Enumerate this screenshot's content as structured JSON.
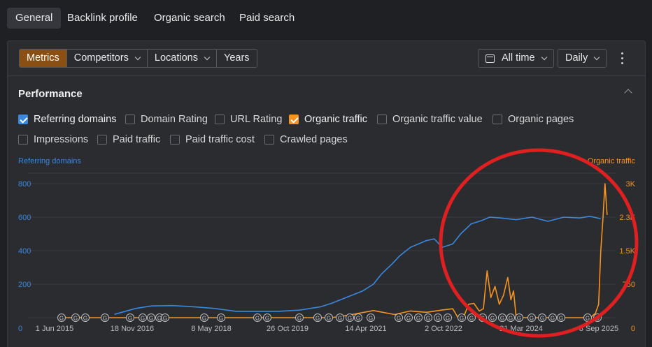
{
  "tabs": [
    {
      "label": "General",
      "active": true
    },
    {
      "label": "Backlink profile"
    },
    {
      "label": "Organic search"
    },
    {
      "label": "Paid search"
    }
  ],
  "toolbar": {
    "segments": [
      {
        "label": "Metrics",
        "active": true
      },
      {
        "label": "Competitors",
        "dropdown": true
      },
      {
        "label": "Locations",
        "dropdown": true
      },
      {
        "label": "Years"
      }
    ],
    "range_label": "All time",
    "interval_label": "Daily",
    "more_icon": "kebab-icon"
  },
  "performance": {
    "title": "Performance",
    "metrics": [
      {
        "label": "Referring domains",
        "checked": true,
        "color": "#3a87e0"
      },
      {
        "label": "Domain Rating",
        "checked": false
      },
      {
        "label": "URL Rating",
        "checked": false
      },
      {
        "label": "Organic traffic",
        "checked": true,
        "color": "#f7931e"
      },
      {
        "label": "Organic traffic value",
        "checked": false
      },
      {
        "label": "Organic pages",
        "checked": false
      },
      {
        "label": "Impressions",
        "checked": false
      },
      {
        "label": "Paid traffic",
        "checked": false
      },
      {
        "label": "Paid traffic cost",
        "checked": false
      },
      {
        "label": "Crawled pages",
        "checked": false
      }
    ]
  },
  "chart_data": {
    "type": "line",
    "left_axis_label": "Referring domains",
    "right_axis_label": "Organic traffic",
    "left_ticks": [
      "0",
      "200",
      "400",
      "600",
      "800"
    ],
    "right_ticks": [
      "0",
      "750",
      "1.5K",
      "2.3K",
      "3K"
    ],
    "x_ticks": [
      "1 Jun 2015",
      "18 Nov 2016",
      "8 May 2018",
      "26 Oct 2019",
      "14 Apr 2021",
      "2 Oct 2022",
      "21 Mar 2024",
      "8 Sep 2025"
    ],
    "ylim_left": [
      0,
      800
    ],
    "ylim_right": [
      0,
      3000
    ],
    "series": [
      {
        "name": "Referring domains",
        "color": "#3a87e0",
        "x": [
          2016.5,
          2016.9,
          2017.2,
          2017.6,
          2018.0,
          2018.4,
          2018.8,
          2019.2,
          2019.6,
          2020.0,
          2020.4,
          2020.6,
          2020.8,
          2021.0,
          2021.2,
          2021.4,
          2021.55,
          2021.75,
          2021.9,
          2022.1,
          2022.4,
          2022.55,
          2022.7,
          2022.9,
          2023.05,
          2023.25,
          2023.45,
          2023.6,
          2023.8,
          2024.1,
          2024.4,
          2024.7,
          2025.0,
          2025.3,
          2025.5,
          2025.7
        ],
        "values": [
          20,
          55,
          70,
          72,
          65,
          55,
          38,
          38,
          38,
          45,
          65,
          85,
          110,
          135,
          160,
          200,
          260,
          320,
          370,
          420,
          460,
          470,
          420,
          440,
          500,
          560,
          580,
          600,
          595,
          585,
          600,
          575,
          600,
          595,
          605,
          590
        ]
      },
      {
        "name": "Organic traffic",
        "color": "#f7931e",
        "x": [
          2015.42,
          2020.6,
          2020.9,
          2021.4,
          2021.8,
          2022.1,
          2022.4,
          2022.7,
          2022.9,
          2023.0,
          2023.1,
          2023.2,
          2023.3,
          2023.4,
          2023.48,
          2023.55,
          2023.62,
          2023.7,
          2023.78,
          2023.86,
          2023.94,
          2024.0,
          2024.05,
          2024.1,
          2025.5,
          2025.6,
          2025.66,
          2025.7,
          2025.74,
          2025.78,
          2025.82
        ],
        "values": [
          0,
          0,
          50,
          160,
          70,
          150,
          120,
          170,
          200,
          0,
          0,
          300,
          320,
          150,
          200,
          1050,
          450,
          700,
          300,
          500,
          900,
          400,
          600,
          0,
          0,
          100,
          300,
          1500,
          2200,
          3000,
          2300
        ]
      }
    ],
    "annotation": "G"
  }
}
